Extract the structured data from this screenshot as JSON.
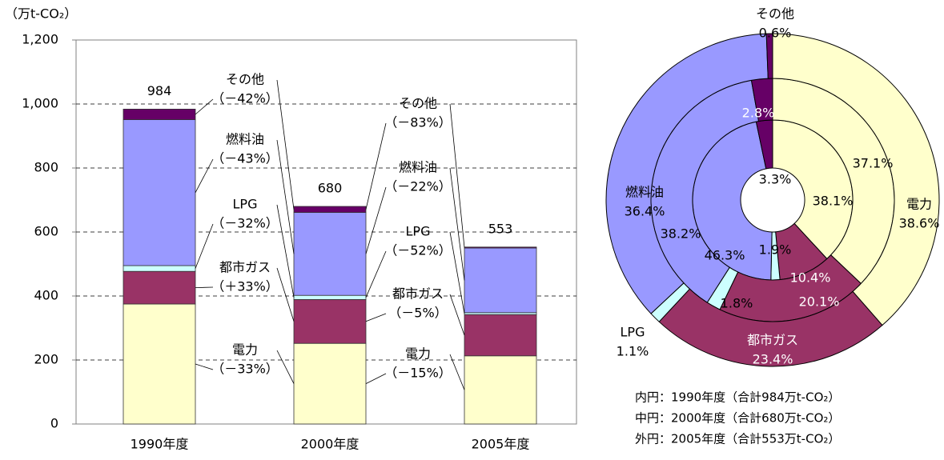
{
  "chart_data": [
    {
      "type": "bar",
      "stacked": true,
      "y_label": "（万t-CO₂）",
      "categories": [
        "1990年度",
        "2000年度",
        "2005年度"
      ],
      "series": [
        {
          "name": "電力",
          "color": "#ffffcc",
          "values": [
            375,
            252,
            213
          ],
          "changes": [
            "（－33%）",
            "（－15%）"
          ]
        },
        {
          "name": "都市ガス",
          "color": "#993366",
          "values": [
            102,
            137,
            129
          ],
          "changes": [
            "（＋33%）",
            "（－5%）"
          ]
        },
        {
          "name": "LPG",
          "color": "#ccffff",
          "values": [
            18,
            13,
            6
          ],
          "changes": [
            "（－32%）",
            "（－52%）"
          ]
        },
        {
          "name": "燃料油",
          "color": "#9999ff",
          "values": [
            456,
            259,
            202
          ],
          "changes": [
            "（－43%）",
            "（－22%）"
          ]
        },
        {
          "name": "その他",
          "color": "#660066",
          "values": [
            33,
            19,
            3
          ],
          "changes": [
            "（－42%）",
            "（－83%）"
          ]
        }
      ],
      "totals": [
        984,
        680,
        553
      ],
      "ylim": [
        0,
        1200
      ],
      "yticks": [
        0,
        200,
        400,
        600,
        800,
        {
          "value": 1000,
          "label": "1,000"
        },
        {
          "value": 1200,
          "label": "1,200"
        }
      ],
      "grid": true
    },
    {
      "type": "donut",
      "categories": [
        "電力",
        "都市ガス",
        "LPG",
        "燃料油",
        "その他"
      ],
      "colors": [
        "#ffffcc",
        "#993366",
        "#ccffff",
        "#9999ff",
        "#660066"
      ],
      "series": [
        {
          "values": [
            38.1,
            10.4,
            1.8,
            46.3,
            3.3
          ],
          "value_labels": [
            "38.1%",
            "10.4%",
            "1.8%",
            "46.3%",
            "3.3%"
          ]
        },
        {
          "values": [
            37.1,
            20.1,
            1.9,
            38.2,
            2.8
          ],
          "value_labels": [
            "37.1%",
            "20.1%",
            "1.9%",
            "38.2%",
            "2.8%"
          ]
        },
        {
          "values": [
            38.6,
            23.4,
            1.1,
            36.4,
            0.6
          ],
          "value_labels": [
            "38.6%",
            "23.4%",
            "1.1%",
            "36.4%",
            "0.6%"
          ]
        }
      ],
      "notes": [
        "内円：1990年度（合計984万t-CO₂）",
        "中円：2000年度（合計680万t-CO₂）",
        "外円：2005年度（合計553万t-CO₂）"
      ]
    }
  ]
}
